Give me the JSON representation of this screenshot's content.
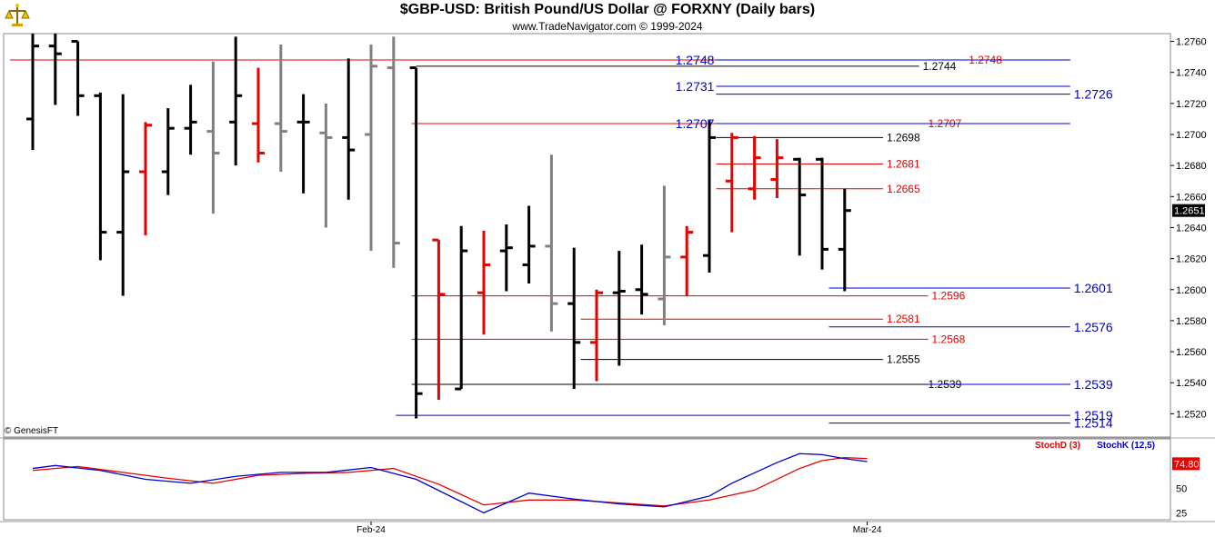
{
  "header": {
    "title": "$GBP-USD:  British Pound/US Dollar @ FORXNY  (Daily bars)",
    "subtitle": "www.TradeNavigator.com © 1999-2024",
    "copyright": "© GenesisFT"
  },
  "colors": {
    "up": "#000000",
    "down": "#e60000",
    "neutral": "#808080",
    "blue": "#0000cc",
    "red": "#e60000",
    "stochK": "#0000cc",
    "stochD": "#e60000",
    "lastBox": "#000000",
    "stochBox": "#e60000"
  },
  "chart_data": [
    {
      "type": "ohlc",
      "title": "$GBP-USD:  British Pound/US Dollar @ FORXNY  (Daily bars)",
      "ylim": [
        1.2505,
        1.2765
      ],
      "y_ticks": [
        "1.2760",
        "1.2740",
        "1.2720",
        "1.2700",
        "1.2680",
        "1.2660",
        "1.2640",
        "1.2620",
        "1.2600",
        "1.2580",
        "1.2560",
        "1.2540",
        "1.2520"
      ],
      "last_price": "1.2651",
      "x_labels": [
        {
          "bar": 15,
          "label": "Feb-24"
        },
        {
          "bar": 37,
          "label": "Mar-24"
        }
      ],
      "bars": [
        {
          "o": 1.271,
          "h": 1.2765,
          "l": 1.269,
          "c": 1.2757,
          "col": "up"
        },
        {
          "o": 1.2757,
          "h": 1.2765,
          "l": 1.2719,
          "c": 1.2752,
          "col": "up"
        },
        {
          "o": 1.276,
          "h": 1.276,
          "l": 1.2712,
          "c": 1.2725,
          "col": "up"
        },
        {
          "o": 1.2725,
          "h": 1.2727,
          "l": 1.2619,
          "c": 1.2637,
          "col": "up"
        },
        {
          "o": 1.2637,
          "h": 1.2726,
          "l": 1.2596,
          "c": 1.2676,
          "col": "up"
        },
        {
          "o": 1.2676,
          "h": 1.2708,
          "l": 1.2635,
          "c": 1.2706,
          "col": "down"
        },
        {
          "o": 1.2676,
          "h": 1.2717,
          "l": 1.2661,
          "c": 1.2704,
          "col": "up"
        },
        {
          "o": 1.2704,
          "h": 1.2732,
          "l": 1.2687,
          "c": 1.2708,
          "col": "up"
        },
        {
          "o": 1.2702,
          "h": 1.2747,
          "l": 1.2649,
          "c": 1.2688,
          "col": "neutral"
        },
        {
          "o": 1.2708,
          "h": 1.2763,
          "l": 1.268,
          "c": 1.2725,
          "col": "up"
        },
        {
          "o": 1.2707,
          "h": 1.2743,
          "l": 1.2682,
          "c": 1.2688,
          "col": "down"
        },
        {
          "o": 1.2707,
          "h": 1.2758,
          "l": 1.2676,
          "c": 1.2702,
          "col": "neutral"
        },
        {
          "o": 1.2708,
          "h": 1.2726,
          "l": 1.2662,
          "c": 1.2708,
          "col": "up"
        },
        {
          "o": 1.2701,
          "h": 1.272,
          "l": 1.264,
          "c": 1.2698,
          "col": "neutral"
        },
        {
          "o": 1.2698,
          "h": 1.2749,
          "l": 1.2658,
          "c": 1.269,
          "col": "up"
        },
        {
          "o": 1.27,
          "h": 1.2758,
          "l": 1.2625,
          "c": 1.2744,
          "col": "neutral"
        },
        {
          "o": 1.2743,
          "h": 1.2763,
          "l": 1.2614,
          "c": 1.263,
          "col": "neutral"
        },
        {
          "o": 1.2743,
          "h": 1.2743,
          "l": 1.2517,
          "c": 1.2533,
          "col": "up"
        },
        {
          "o": 1.2632,
          "h": 1.2632,
          "l": 1.2529,
          "c": 1.2597,
          "col": "down"
        },
        {
          "o": 1.2536,
          "h": 1.2641,
          "l": 1.2536,
          "c": 1.2625,
          "col": "up"
        },
        {
          "o": 1.2598,
          "h": 1.2638,
          "l": 1.2571,
          "c": 1.2616,
          "col": "down"
        },
        {
          "o": 1.2625,
          "h": 1.2642,
          "l": 1.2599,
          "c": 1.2627,
          "col": "up"
        },
        {
          "o": 1.2616,
          "h": 1.2654,
          "l": 1.2604,
          "c": 1.2628,
          "col": "up"
        },
        {
          "o": 1.2628,
          "h": 1.2687,
          "l": 1.2573,
          "c": 1.2591,
          "col": "neutral"
        },
        {
          "o": 1.2591,
          "h": 1.2627,
          "l": 1.2536,
          "c": 1.2566,
          "col": "up"
        },
        {
          "o": 1.2566,
          "h": 1.26,
          "l": 1.2541,
          "c": 1.2598,
          "col": "down"
        },
        {
          "o": 1.2598,
          "h": 1.2625,
          "l": 1.2551,
          "c": 1.2599,
          "col": "up"
        },
        {
          "o": 1.26,
          "h": 1.2629,
          "l": 1.2584,
          "c": 1.2597,
          "col": "up"
        },
        {
          "o": 1.2594,
          "h": 1.2667,
          "l": 1.2577,
          "c": 1.2621,
          "col": "neutral"
        },
        {
          "o": 1.2621,
          "h": 1.2641,
          "l": 1.2596,
          "c": 1.2637,
          "col": "down"
        },
        {
          "o": 1.2622,
          "h": 1.2709,
          "l": 1.2611,
          "c": 1.2698,
          "col": "up"
        },
        {
          "o": 1.267,
          "h": 1.2701,
          "l": 1.2637,
          "c": 1.2698,
          "col": "down"
        },
        {
          "o": 1.2665,
          "h": 1.2699,
          "l": 1.2658,
          "c": 1.2685,
          "col": "down"
        },
        {
          "o": 1.2671,
          "h": 1.2697,
          "l": 1.2659,
          "c": 1.2685,
          "col": "down"
        },
        {
          "o": 1.2684,
          "h": 1.2685,
          "l": 1.2622,
          "c": 1.2661,
          "col": "up"
        },
        {
          "o": 1.2684,
          "h": 1.2685,
          "l": 1.2613,
          "c": 1.2626,
          "col": "up"
        },
        {
          "o": 1.2626,
          "h": 1.2665,
          "l": 1.2599,
          "c": 1.2651,
          "col": "up"
        }
      ],
      "levels": [
        {
          "value": 1.2748,
          "label": "1.2748",
          "color": "red",
          "from": -1,
          "to": 46,
          "label_pos": "end",
          "label_bar": 41.5
        },
        {
          "value": 1.2748,
          "label": "1.2748",
          "color": "blue",
          "from": 30.3,
          "to": 46,
          "label_pos": "before"
        },
        {
          "value": 1.2744,
          "label": "1.2744",
          "color": "black",
          "from": 17,
          "to": 39.3,
          "label_pos": "end"
        },
        {
          "value": 1.2731,
          "label": "1.2731",
          "color": "blue",
          "from": 30.3,
          "to": 46,
          "label_pos": "before"
        },
        {
          "value": 1.2726,
          "label": "1.2726",
          "color": "blue",
          "from": 30.3,
          "to": 46,
          "label_pos": "end"
        },
        {
          "value": 1.2707,
          "label": "1.2707",
          "color": "red",
          "from": 16.8,
          "to": 46,
          "label_pos": "end",
          "label_bar": 39.7
        },
        {
          "value": 1.2707,
          "label": "1.2707",
          "color": "blue",
          "from": 30.3,
          "to": 46,
          "label_pos": "before"
        },
        {
          "value": 1.2698,
          "label": "1.2698",
          "color": "black",
          "from": 30.3,
          "to": 37.7,
          "label_pos": "end"
        },
        {
          "value": 1.2681,
          "label": "1.2681",
          "color": "red",
          "from": 30.3,
          "to": 37.7,
          "label_pos": "end"
        },
        {
          "value": 1.2665,
          "label": "1.2665",
          "color": "red",
          "from": 30.3,
          "to": 37.7,
          "label_pos": "end"
        },
        {
          "value": 1.2601,
          "label": "1.2601",
          "color": "blue",
          "from": 35.3,
          "to": 46,
          "label_pos": "end"
        },
        {
          "value": 1.2596,
          "label": "1.2596",
          "color": "red",
          "from": 16.8,
          "to": 39.7,
          "label_pos": "end"
        },
        {
          "value": 1.2581,
          "label": "1.2581",
          "color": "red",
          "from": 24.3,
          "to": 37.7,
          "label_pos": "end"
        },
        {
          "value": 1.2576,
          "label": "1.2576",
          "color": "blue",
          "from": 35.3,
          "to": 46,
          "label_pos": "end"
        },
        {
          "value": 1.2568,
          "label": "1.2568",
          "color": "red",
          "from": 16.8,
          "to": 39.7,
          "label_pos": "end"
        },
        {
          "value": 1.2555,
          "label": "1.2555",
          "color": "black",
          "from": 24.3,
          "to": 37.7,
          "label_pos": "end"
        },
        {
          "value": 1.2539,
          "label": "1.2539",
          "color": "black",
          "from": 16.8,
          "to": 46,
          "label_pos": "end",
          "label_bar": 39.7
        },
        {
          "value": 1.2539,
          "label": "1.2539",
          "color": "blue",
          "from": 39.7,
          "to": 46,
          "label_pos": "end"
        },
        {
          "value": 1.2519,
          "label": "1.2519",
          "color": "blue",
          "from": 16.1,
          "to": 46,
          "label_pos": "end"
        },
        {
          "value": 1.2514,
          "label": "1.2514",
          "color": "blue",
          "from": 35.3,
          "to": 46,
          "label_pos": "end"
        }
      ]
    },
    {
      "type": "line",
      "title": "",
      "ylim": [
        18,
        100
      ],
      "y_ticks": [
        "75",
        "50",
        "25"
      ],
      "last_value": "74.80",
      "series": [
        {
          "name": "StochD (3)",
          "color": "stochD",
          "values": [
            [
              0,
              68
            ],
            [
              2,
              72
            ],
            [
              4,
              66
            ],
            [
              6,
              60
            ],
            [
              8,
              55
            ],
            [
              10,
              63
            ],
            [
              12,
              65
            ],
            [
              14,
              66
            ],
            [
              16,
              70
            ],
            [
              18,
              54
            ],
            [
              20,
              33
            ],
            [
              22,
              38
            ],
            [
              24,
              38
            ],
            [
              26,
              35
            ],
            [
              28,
              32
            ],
            [
              30,
              38
            ],
            [
              32,
              48
            ],
            [
              34,
              70
            ],
            [
              35,
              78
            ],
            [
              36,
              81
            ],
            [
              37,
              80
            ]
          ]
        },
        {
          "name": "StochK (12,5)",
          "color": "stochK",
          "values": [
            [
              0,
              70
            ],
            [
              1,
              73
            ],
            [
              3,
              68
            ],
            [
              5,
              59
            ],
            [
              7,
              55
            ],
            [
              9,
              62
            ],
            [
              11,
              66
            ],
            [
              13,
              66
            ],
            [
              15,
              71
            ],
            [
              17,
              59
            ],
            [
              20,
              25
            ],
            [
              22,
              45
            ],
            [
              24,
              39
            ],
            [
              26,
              34
            ],
            [
              28,
              31
            ],
            [
              30,
              42
            ],
            [
              31,
              55
            ],
            [
              33,
              76
            ],
            [
              34,
              85
            ],
            [
              35,
              84
            ],
            [
              36,
              80
            ],
            [
              37,
              77
            ]
          ]
        }
      ]
    }
  ]
}
